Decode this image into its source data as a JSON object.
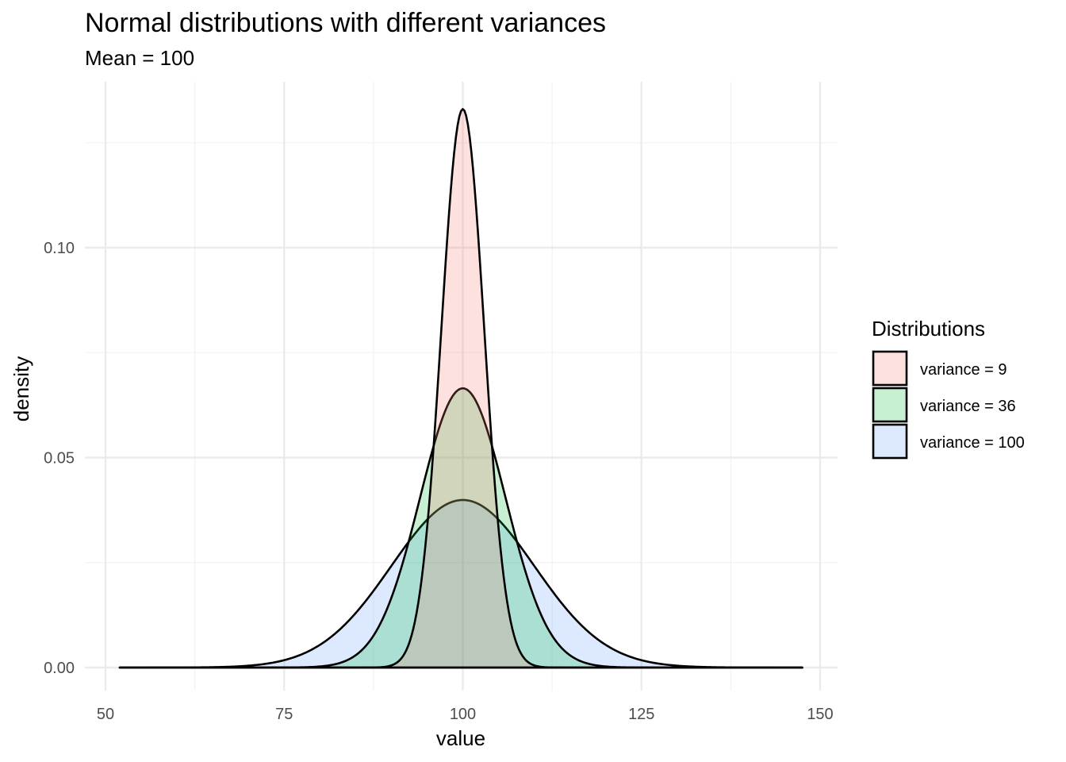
{
  "chart_data": {
    "type": "area",
    "title": "Normal distributions with different variances",
    "subtitle": "Mean = 100",
    "xlabel": "value",
    "ylabel": "density",
    "xlim": [
      50,
      150
    ],
    "ylim": [
      0,
      0.133
    ],
    "x_ticks": [
      50,
      75,
      100,
      125,
      150
    ],
    "x_tick_labels": [
      "50",
      "75",
      "100",
      "125",
      "150"
    ],
    "y_ticks": [
      0,
      0.05,
      0.1
    ],
    "y_tick_labels": [
      "0.00",
      "0.05",
      "0.10"
    ],
    "grid": true,
    "legend": {
      "title": "Distributions",
      "position": "right"
    },
    "x_range": [
      52,
      147.5
    ],
    "series": [
      {
        "name": "variance = 9",
        "mean": 100,
        "variance": 9,
        "fill": "#F8766D",
        "peak": 0.133
      },
      {
        "name": "variance = 36",
        "mean": 100,
        "variance": 36,
        "fill": "#00BA38",
        "peak": 0.0665
      },
      {
        "name": "variance = 100",
        "mean": 100,
        "variance": 100,
        "fill": "#619CFF",
        "peak": 0.0399
      }
    ],
    "fill_opacity": 0.22,
    "outline_color": "#000000"
  }
}
